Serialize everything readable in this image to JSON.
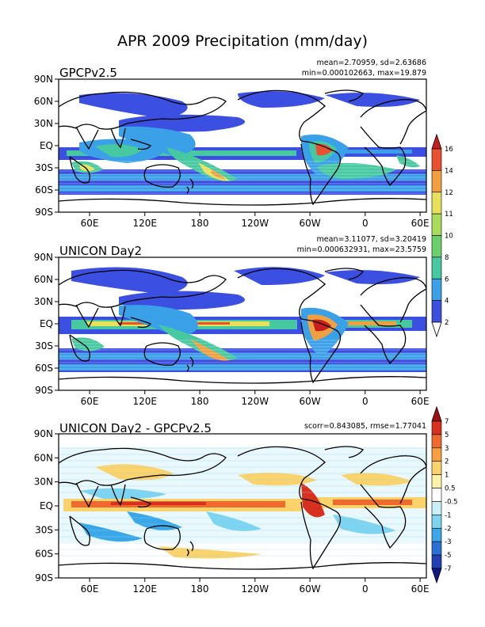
{
  "figure": {
    "title": "APR 2009 Precipitation (mm/day)"
  },
  "panels": [
    {
      "id": "gpcp",
      "title": "GPCPv2.5",
      "stats_line1": "mean=2.70959, sd=2.63686",
      "stats_line2": "min=0.000102663, max=19.879"
    },
    {
      "id": "unicon",
      "title": "UNICON Day2",
      "stats_line1": "mean=3.11077, sd=3.20419",
      "stats_line2": "min=0.000632931, max=23.5759"
    },
    {
      "id": "diff",
      "title": "UNICON Day2 - GPCPv2.5",
      "stats_line1": "scorr=0.843085, rmse=1.77041",
      "stats_line2": ""
    }
  ],
  "axes": {
    "lat_labels": [
      "90N",
      "60N",
      "30N",
      "EQ",
      "30S",
      "60S",
      "90S"
    ],
    "lon_labels": [
      "60E",
      "120E",
      "180",
      "120W",
      "60W",
      "0",
      "60E"
    ]
  },
  "colorbars": {
    "precip": {
      "levels": [
        "2",
        "4",
        "6",
        "8",
        "10",
        "11",
        "12",
        "14",
        "16"
      ],
      "colors": [
        "#ffffff",
        "#3b4fe0",
        "#3aa0e8",
        "#46c8a0",
        "#6bd06b",
        "#a8dc5a",
        "#e8e05a",
        "#f0a040",
        "#e85030",
        "#c81e1e"
      ]
    },
    "diff": {
      "levels": [
        "7",
        "5",
        "3",
        "2",
        "1",
        "0.5",
        "-0.5",
        "-1",
        "-2",
        "-3",
        "-5",
        "-7"
      ],
      "colors": [
        "#a01010",
        "#d83020",
        "#f06a30",
        "#f8a040",
        "#fcd26a",
        "#fff4a8",
        "#ffffff",
        "#c8f0f8",
        "#7cd4f0",
        "#3aa8e8",
        "#2a70d8",
        "#2040b8",
        "#101a80"
      ]
    }
  }
}
